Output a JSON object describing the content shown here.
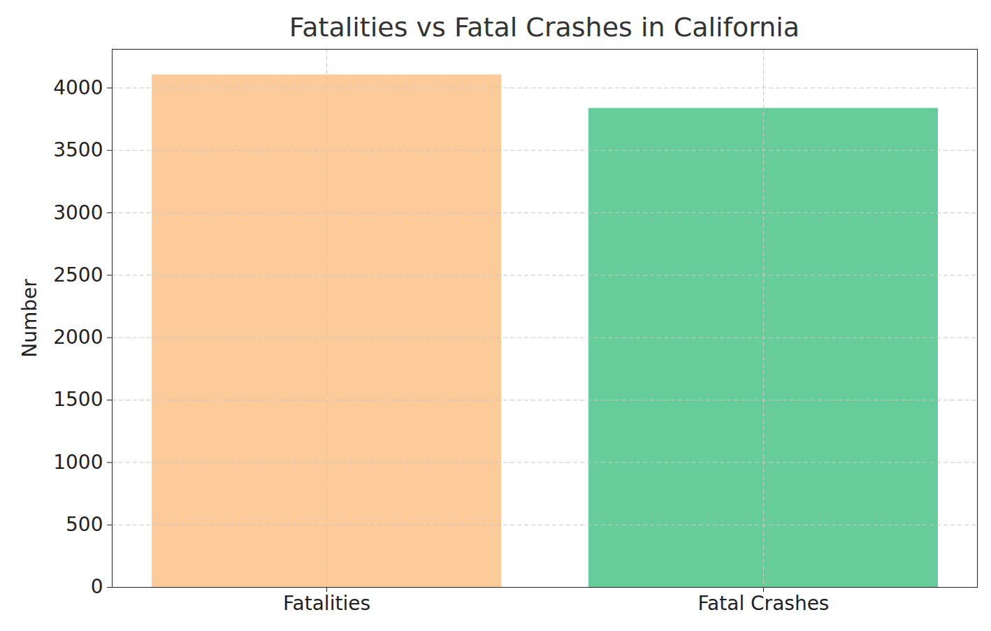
{
  "chart_data": {
    "type": "bar",
    "title": "Fatalities vs Fatal Crashes in California",
    "ylabel": "Number",
    "categories": [
      "Fatalities",
      "Fatal Crashes"
    ],
    "values": [
      4105,
      3837
    ],
    "colors": [
      "#fdca99",
      "#66cc99"
    ],
    "ylim": [
      0,
      4310
    ],
    "yticks": [
      0,
      500,
      1000,
      1500,
      2000,
      2500,
      3000,
      3500,
      4000
    ],
    "grid": true
  }
}
